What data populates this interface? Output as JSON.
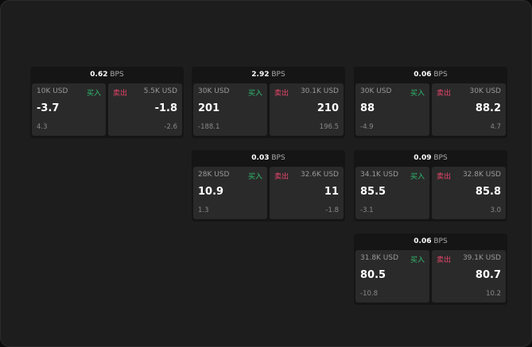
{
  "colors": {
    "buy": "#2fbf71",
    "sell": "#e8456b"
  },
  "labels": {
    "buy": "买入",
    "sell": "卖出",
    "unit": "BPS"
  },
  "cards": [
    {
      "spread": "0.62",
      "bid_size": "10K USD",
      "bid": "-3.7",
      "bid_change": "4.3",
      "ask_size": "5.5K USD",
      "ask": "-1.8",
      "ask_change": "-2.6"
    },
    {
      "spread": "2.92",
      "bid_size": "30K USD",
      "bid": "201",
      "bid_change": "-188.1",
      "ask_size": "30.1K USD",
      "ask": "210",
      "ask_change": "196.5"
    },
    {
      "spread": "0.06",
      "bid_size": "30K USD",
      "bid": "88",
      "bid_change": "-4.9",
      "ask_size": "30K USD",
      "ask": "88.2",
      "ask_change": "4.7"
    },
    {
      "spread": "0.03",
      "bid_size": "28K USD",
      "bid": "10.9",
      "bid_change": "1.3",
      "ask_size": "32.6K USD",
      "ask": "11",
      "ask_change": "-1.8"
    },
    {
      "spread": "0.09",
      "bid_size": "34.1K USD",
      "bid": "85.5",
      "bid_change": "-3.1",
      "ask_size": "32.8K USD",
      "ask": "85.8",
      "ask_change": "3.0"
    },
    {
      "spread": "0.06",
      "bid_size": "31.8K USD",
      "bid": "80.5",
      "bid_change": "-10.8",
      "ask_size": "39.1K USD",
      "ask": "80.7",
      "ask_change": "10.2"
    }
  ]
}
